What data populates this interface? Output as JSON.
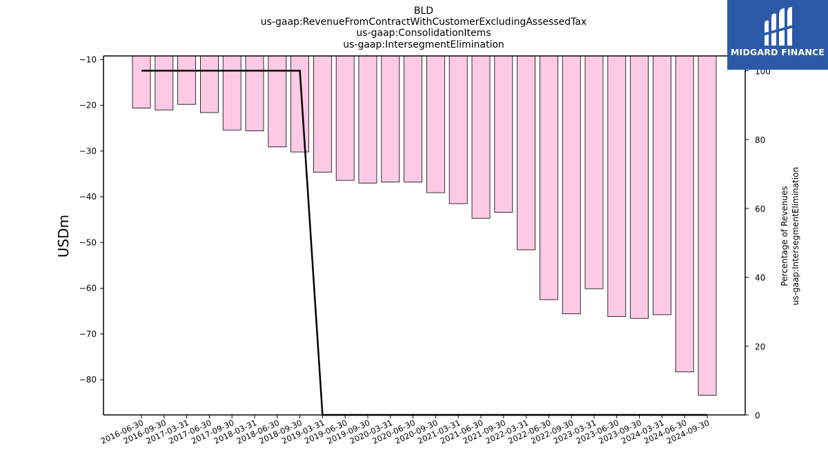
{
  "logo": {
    "text": "MIDGARD FINANCE"
  },
  "chart_data": {
    "type": "bar",
    "title_lines": [
      "BLD",
      "us-gaap:RevenueFromContractWithCustomerExcludingAssessedTax",
      "us-gaap:ConsolidationItems",
      "us-gaap:IntersegmentElimination"
    ],
    "ylabel": "USDm",
    "ylabel_right": [
      "Percentage of Revenues",
      "us-gaap:IntersegmentElimination"
    ],
    "ylim": [
      -87.7,
      -9.2
    ],
    "yticks": [
      -10,
      -20,
      -30,
      -40,
      -50,
      -60,
      -70,
      -80
    ],
    "ylim_right": [
      0,
      104.3
    ],
    "yticks_right": [
      0,
      20,
      40,
      60,
      80,
      100
    ],
    "colors": {
      "bar_fill": "#fccae4",
      "bar_edge": "#000000",
      "line": "#000000"
    },
    "categories": [
      "2016-06-30",
      "2016-09-30",
      "2017-03-31",
      "2017-06-30",
      "2017-09-30",
      "2018-03-31",
      "2018-06-30",
      "2018-09-30",
      "2019-03-31",
      "2019-06-30",
      "2019-09-30",
      "2020-03-31",
      "2020-06-30",
      "2020-09-30",
      "2021-03-31",
      "2021-06-30",
      "2021-09-30",
      "2022-03-31",
      "2022-06-30",
      "2022-09-30",
      "2023-03-31",
      "2023-06-30",
      "2023-09-30",
      "2024-03-31",
      "2024-06-30",
      "2024-09-30"
    ],
    "series": [
      {
        "axis": "left",
        "kind": "bar",
        "values": [
          -20.6,
          -21.0,
          -19.8,
          -21.6,
          -25.4,
          -25.6,
          -29.1,
          -30.2,
          -34.6,
          -36.4,
          -37.0,
          -36.8,
          -36.8,
          -39.1,
          -41.5,
          -44.7,
          -43.4,
          -51.6,
          -62.5,
          -65.6,
          -60.1,
          -66.2,
          -66.6,
          -65.8,
          -78.3,
          -83.4
        ]
      },
      {
        "axis": "right",
        "kind": "line",
        "values": [
          100,
          100,
          100,
          100,
          100,
          100,
          100,
          100,
          0,
          0,
          0,
          0,
          0,
          0,
          0,
          0,
          0,
          0,
          0,
          0,
          0,
          0,
          0,
          0,
          0,
          0
        ]
      }
    ]
  }
}
